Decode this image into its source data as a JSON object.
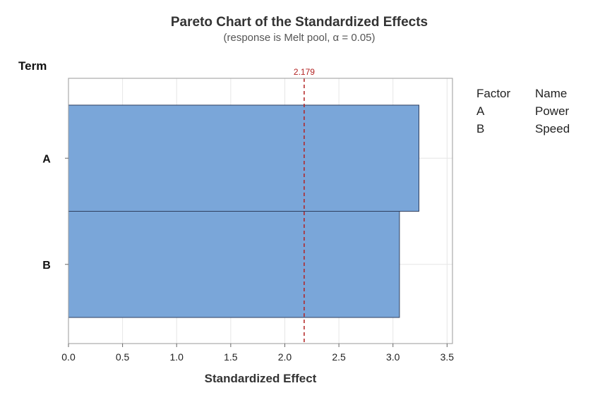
{
  "chart_data": {
    "type": "bar",
    "orientation": "horizontal",
    "title": "Pareto Chart of the Standardized Effects",
    "subtitle": "(response is Melt pool, α = 0.05)",
    "xlabel": "Standardized Effect",
    "ylabel": "Term",
    "categories": [
      "A",
      "B"
    ],
    "values": [
      3.24,
      3.06
    ],
    "xlim": [
      0,
      3.55
    ],
    "xticks": [
      "0.0",
      "0.5",
      "1.0",
      "1.5",
      "2.0",
      "2.5",
      "3.0",
      "3.5"
    ],
    "reference_line": {
      "value": 2.179,
      "label": "2.179",
      "color": "#b22222"
    },
    "bar_color": "#7aa6d9",
    "bar_edge_color": "#2f3f5f",
    "grid": true,
    "legend": {
      "placement": "right",
      "header": [
        "Factor",
        "Name"
      ],
      "rows": [
        [
          "A",
          "Power"
        ],
        [
          "B",
          "Speed"
        ]
      ]
    }
  }
}
